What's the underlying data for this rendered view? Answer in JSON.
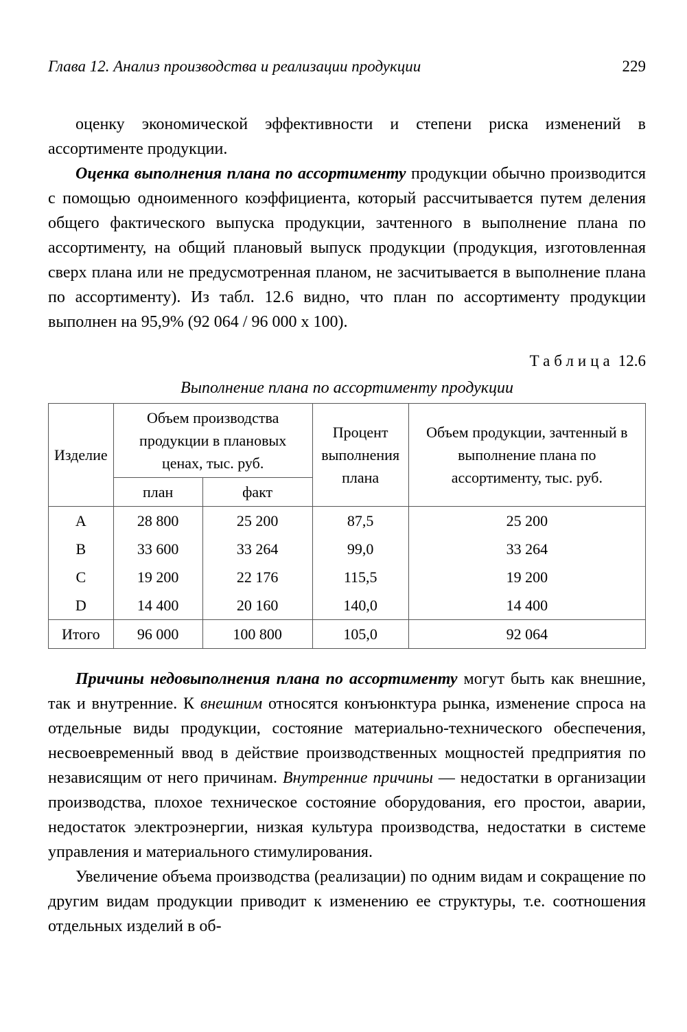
{
  "header": {
    "title": "Глава 12. Анализ производства и реализации продукции",
    "page": "229"
  },
  "para1": {
    "text": "оценку экономической эффективности и степени риска изменений в ассортименте продукции."
  },
  "para2": {
    "lead_bold": "Оценка выполнения плана по ассортименту",
    "rest": " продукции обычно производится с помощью одноименного коэффициента, который рассчитывается путем деления общего фактического выпуска продукции, зачтенного в выполнение плана по ассортименту, на общий плановый выпуск продукции (продукция, изготовленная сверх плана или не предусмотренная планом, не засчитывается в выполнение плана по ассортименту). Из табл. 12.6 видно, что план по ассортименту продукции выполнен на 95,9% (92 064 / 96 000 х 100)."
  },
  "table": {
    "label_word": "Таблица",
    "label_num": "12.6",
    "caption": "Выполнение плана по ассортименту продукции",
    "columns": {
      "product": "Изделие",
      "volume_group": "Объем производства продукции в плановых ценах, тыс. руб.",
      "plan": "план",
      "fact": "факт",
      "percent": "Процент выполнения плана",
      "counted": "Объем продукции, зачтенный в выполнение плана по ассортименту, тыс. руб."
    },
    "rows": [
      {
        "product": "A",
        "plan": "28 800",
        "fact": "25 200",
        "pct": "87,5",
        "counted": "25 200"
      },
      {
        "product": "B",
        "plan": "33 600",
        "fact": "33 264",
        "pct": "99,0",
        "counted": "33 264"
      },
      {
        "product": "C",
        "plan": "19 200",
        "fact": "22 176",
        "pct": "115,5",
        "counted": "19 200"
      },
      {
        "product": "D",
        "plan": "14 400",
        "fact": "20 160",
        "pct": "140,0",
        "counted": "14 400"
      }
    ],
    "total": {
      "label": "Итого",
      "plan": "96 000",
      "fact": "100 800",
      "pct": "105,0",
      "counted": "92 064"
    }
  },
  "para3": {
    "lead_bold": "Причины недовыполнения плана по ассортименту",
    "seg1": " могут быть как внешние, так и внутренние. К ",
    "ital1": "внешним",
    "seg2": " относятся конъюнктура рынка, изменение спроса на отдельные виды продукции, состояние материально-технического обеспечения, несвоевременный ввод в действие производственных мощностей предприятия по независящим от него причинам. ",
    "ital2": "Внутренние причины",
    "seg3": " — недостатки в организации производства, плохое техническое состояние оборудования, его простои, аварии, недостаток электроэнергии, низкая культура производства, недостатки в системе управления и материального стимулирования."
  },
  "para4": {
    "text": "Увеличение объема производства (реализации) по одним видам и сокращение по другим видам продукции приводит к изменению ее структуры, т.е. соотношения отдельных изделий в об-"
  }
}
